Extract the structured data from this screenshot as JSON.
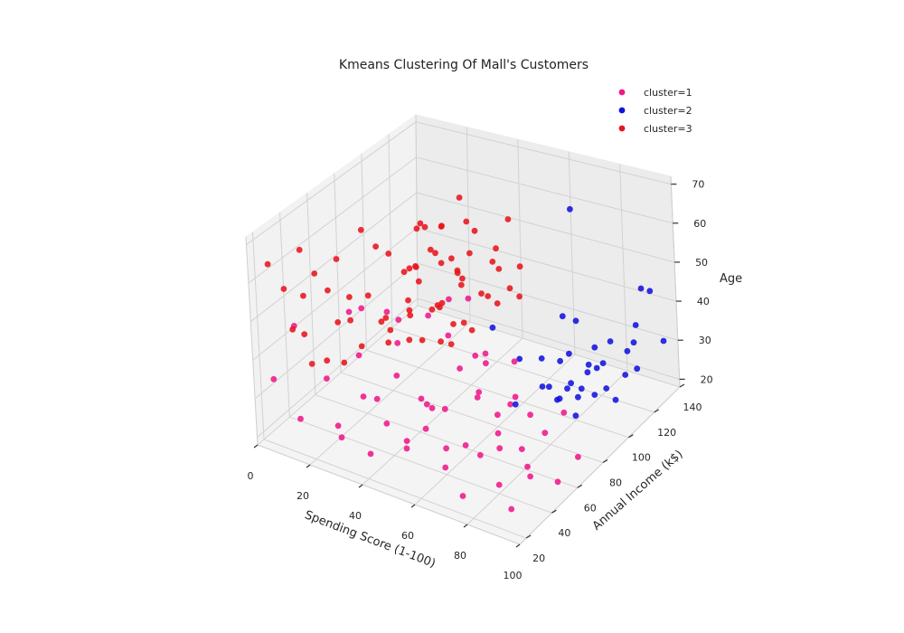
{
  "chart_data": {
    "type": "scatter",
    "title": "Kmeans Clustering Of Mall's Customers",
    "axes": {
      "x": {
        "label": "Spending Score (1-100)",
        "ticks": [
          "0",
          "20",
          "40",
          "60",
          "80",
          "100"
        ],
        "range": [
          0,
          100
        ]
      },
      "y": {
        "label": "Annual Income (k$)",
        "ticks": [
          "20",
          "40",
          "60",
          "80",
          "100",
          "120",
          "140"
        ],
        "range": [
          15,
          140
        ]
      },
      "z": {
        "label": "Age",
        "ticks": [
          "20",
          "30",
          "40",
          "50",
          "60",
          "70"
        ],
        "range": [
          18,
          72
        ]
      }
    },
    "grid": true,
    "legend_position": "top-right",
    "series": [
      {
        "name": "cluster=1",
        "color": "#f0178b",
        "points": [
          [
            5,
            20,
            35
          ],
          [
            12,
            25,
            25
          ],
          [
            30,
            18,
            30
          ],
          [
            40,
            22,
            24
          ],
          [
            55,
            20,
            30
          ],
          [
            6,
            35,
            45
          ],
          [
            15,
            40,
            32
          ],
          [
            25,
            30,
            22
          ],
          [
            40,
            35,
            28
          ],
          [
            50,
            42,
            35
          ],
          [
            60,
            40,
            25
          ],
          [
            70,
            35,
            30
          ],
          [
            75,
            22,
            22
          ],
          [
            85,
            30,
            25
          ],
          [
            92,
            25,
            22
          ],
          [
            35,
            55,
            42
          ],
          [
            50,
            50,
            30
          ],
          [
            65,
            55,
            35
          ],
          [
            78,
            45,
            28
          ],
          [
            88,
            48,
            22
          ],
          [
            42,
            65,
            48
          ],
          [
            55,
            62,
            38
          ],
          [
            70,
            60,
            30
          ],
          [
            80,
            58,
            24
          ],
          [
            95,
            55,
            20
          ],
          [
            45,
            75,
            50
          ],
          [
            60,
            72,
            40
          ],
          [
            72,
            70,
            32
          ],
          [
            84,
            68,
            26
          ],
          [
            30,
            48,
            28
          ],
          [
            20,
            55,
            35
          ],
          [
            18,
            62,
            45
          ],
          [
            65,
            30,
            40
          ],
          [
            48,
            28,
            45
          ],
          [
            92,
            38,
            29
          ],
          [
            58,
            48,
            52
          ],
          [
            82,
            36,
            36
          ],
          [
            38,
            42,
            55
          ],
          [
            68,
            50,
            22
          ],
          [
            28,
            70,
            42
          ],
          [
            52,
            80,
            35
          ],
          [
            76,
            62,
            45
          ],
          [
            98,
            65,
            24
          ],
          [
            62,
            35,
            22
          ],
          [
            44,
            58,
            27
          ],
          [
            88,
            75,
            30
          ],
          [
            35,
            28,
            36
          ],
          [
            56,
            68,
            55
          ],
          [
            74,
            44,
            50
          ],
          [
            22,
            45,
            50
          ],
          [
            60,
            25,
            35
          ],
          [
            78,
            30,
            48
          ],
          [
            90,
            45,
            40
          ],
          [
            46,
            38,
            24
          ],
          [
            66,
            78,
            26
          ]
        ]
      },
      {
        "name": "cluster=2",
        "color": "#1212e0",
        "points": [
          [
            72,
            70,
            30
          ],
          [
            80,
            75,
            35
          ],
          [
            85,
            78,
            32
          ],
          [
            90,
            80,
            28
          ],
          [
            95,
            85,
            33
          ],
          [
            75,
            85,
            38
          ],
          [
            82,
            90,
            30
          ],
          [
            88,
            95,
            36
          ],
          [
            92,
            100,
            29
          ],
          [
            97,
            105,
            32
          ],
          [
            78,
            100,
            35
          ],
          [
            86,
            110,
            31
          ],
          [
            93,
            115,
            34
          ],
          [
            74,
            92,
            28
          ],
          [
            84,
            120,
            33
          ],
          [
            90,
            126,
            32
          ],
          [
            96,
            137,
            30
          ],
          [
            70,
            78,
            39
          ],
          [
            79,
            88,
            27
          ],
          [
            87,
            102,
            38
          ],
          [
            94,
            120,
            28
          ],
          [
            76,
            110,
            40
          ],
          [
            83,
            96,
            26
          ],
          [
            91,
            88,
            37
          ],
          [
            98,
            95,
            29
          ],
          [
            73,
            103,
            31
          ],
          [
            81,
            115,
            27
          ],
          [
            89,
            130,
            35
          ],
          [
            95,
            75,
            38
          ],
          [
            86,
            85,
            34
          ],
          [
            60,
            78,
            45
          ],
          [
            95,
            130,
            45
          ],
          [
            88,
            137,
            42
          ],
          [
            80,
            92,
            48
          ],
          [
            70,
            120,
            65
          ]
        ]
      },
      {
        "name": "cluster=3",
        "color": "#e8141b",
        "points": [
          [
            5,
            20,
            65
          ],
          [
            8,
            25,
            58
          ],
          [
            12,
            30,
            68
          ],
          [
            10,
            35,
            54
          ],
          [
            15,
            25,
            48
          ],
          [
            20,
            20,
            43
          ],
          [
            22,
            30,
            60
          ],
          [
            25,
            40,
            50
          ],
          [
            18,
            45,
            63
          ],
          [
            28,
            48,
            55
          ],
          [
            30,
            38,
            45
          ],
          [
            35,
            50,
            47
          ],
          [
            40,
            55,
            52
          ],
          [
            42,
            60,
            43
          ],
          [
            38,
            65,
            60
          ],
          [
            45,
            68,
            50
          ],
          [
            48,
            72,
            45
          ],
          [
            50,
            75,
            55
          ],
          [
            32,
            78,
            65
          ],
          [
            40,
            80,
            57
          ],
          [
            55,
            85,
            50
          ],
          [
            20,
            60,
            67
          ],
          [
            25,
            70,
            59
          ],
          [
            30,
            58,
            40
          ],
          [
            15,
            50,
            44
          ],
          [
            35,
            75,
            68
          ],
          [
            42,
            88,
            53
          ],
          [
            50,
            90,
            48
          ],
          [
            45,
            78,
            60
          ],
          [
            38,
            85,
            65
          ],
          [
            52,
            98,
            58
          ],
          [
            48,
            103,
            52
          ],
          [
            55,
            110,
            50
          ],
          [
            40,
            95,
            70
          ],
          [
            30,
            88,
            62
          ],
          [
            25,
            92,
            45
          ],
          [
            44,
            70,
            40
          ],
          [
            36,
            62,
            41
          ],
          [
            33,
            68,
            49
          ],
          [
            47,
            82,
            42
          ],
          [
            28,
            55,
            66
          ],
          [
            22,
            40,
            38
          ],
          [
            52,
            78,
            63
          ],
          [
            58,
            88,
            57
          ],
          [
            46,
            64,
            66
          ],
          [
            54,
            94,
            45
          ],
          [
            40,
            72,
            47
          ],
          [
            34,
            84,
            58
          ],
          [
            44,
            98,
            61
          ],
          [
            49,
            62,
            54
          ],
          [
            36,
            45,
            52
          ],
          [
            26,
            38,
            57
          ],
          [
            18,
            35,
            39
          ],
          [
            56,
            100,
            66
          ],
          [
            43,
            75,
            69
          ],
          [
            50,
            66,
            42
          ],
          [
            38,
            96,
            49
          ],
          [
            12,
            40,
            59
          ],
          [
            8,
            30,
            46
          ],
          [
            60,
            92,
            51
          ],
          [
            31,
            73,
            43
          ],
          [
            46,
            88,
            67
          ],
          [
            53,
            70,
            59
          ],
          [
            39,
            58,
            62
          ],
          [
            29,
            82,
            53
          ],
          [
            57,
            105,
            44
          ],
          [
            41,
            50,
            64
          ],
          [
            24,
            65,
            42
          ],
          [
            48,
            86,
            39
          ],
          [
            33,
            90,
            41
          ]
        ]
      }
    ]
  }
}
